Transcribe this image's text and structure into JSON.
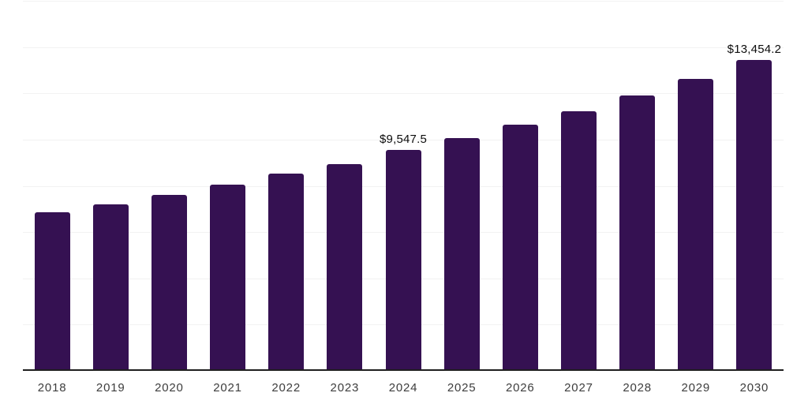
{
  "chart_data": {
    "type": "bar",
    "title": "",
    "xlabel": "",
    "ylabel": "",
    "categories": [
      "2018",
      "2019",
      "2020",
      "2021",
      "2022",
      "2023",
      "2024",
      "2025",
      "2026",
      "2027",
      "2028",
      "2029",
      "2030"
    ],
    "values": [
      6860,
      7210,
      7620,
      8055,
      8515,
      8950,
      9547.5,
      10050,
      10630,
      11240,
      11920,
      12640,
      13454.2
    ],
    "data_labels": [
      null,
      null,
      null,
      null,
      null,
      null,
      "$9,547.5",
      null,
      null,
      null,
      null,
      null,
      "$13,454.2"
    ],
    "ylim": [
      0,
      16000
    ],
    "gridline_interval": 2000,
    "grid": true,
    "legend_position": "none",
    "y_tick_labels_visible": false,
    "colors": {
      "bar": "#351152",
      "gridline": "#f2f2f2",
      "axis_line": "#1f1f1f",
      "tick_label": "#3d3d3d",
      "data_label": "#0d0d0d",
      "background": "#ffffff"
    }
  }
}
